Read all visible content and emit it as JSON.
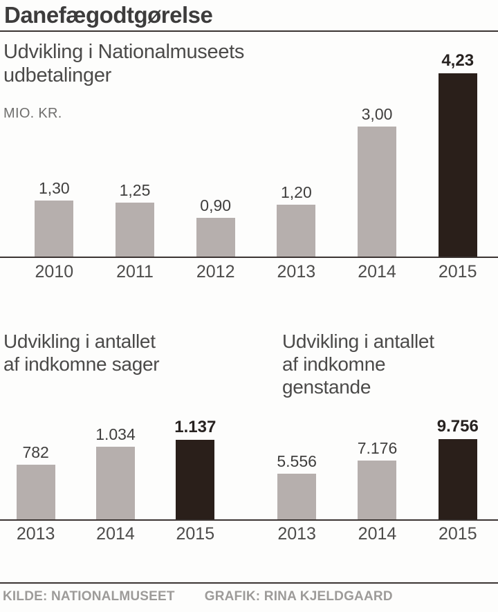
{
  "page": {
    "title": "Danefægodtgørelse",
    "source_label": "KILDE: NATIONALMUSEET",
    "credit_label": "GRAFIK: RINA KJELDGAARD"
  },
  "colors": {
    "bar_default": "#b6afad",
    "bar_highlight": "#2a1f1a",
    "axis_line": "#3a3331"
  },
  "chart_data": [
    {
      "type": "bar",
      "title": "Udvikling i Nationalmuseets\nudbetalinger",
      "ylabel": "MIO. KR.",
      "categories": [
        "2010",
        "2011",
        "2012",
        "2013",
        "2014",
        "2015"
      ],
      "values": [
        1.3,
        1.25,
        0.9,
        1.2,
        3.0,
        4.23
      ],
      "labels": [
        "1,30",
        "1,25",
        "0,90",
        "1,20",
        "3,00",
        "4,23"
      ],
      "highlight_category": "2015",
      "ylim": [
        0,
        4.23
      ],
      "grid": false,
      "legend": false
    },
    {
      "type": "bar",
      "title": "Udvikling i antallet\naf indkomne sager",
      "categories": [
        "2013",
        "2014",
        "2015"
      ],
      "values": [
        782,
        1034,
        1137
      ],
      "labels": [
        "782",
        "1.034",
        "1.137"
      ],
      "highlight_category": "2015",
      "ylim": [
        0,
        1137
      ],
      "grid": false,
      "legend": false
    },
    {
      "type": "bar",
      "title": "Udvikling i antallet\naf indkomne\ngenstande",
      "categories": [
        "2013",
        "2014",
        "2015"
      ],
      "values": [
        5556,
        7176,
        9756
      ],
      "labels": [
        "5.556",
        "7.176",
        "9.756"
      ],
      "highlight_category": "2015",
      "ylim": [
        0,
        9756
      ],
      "grid": false,
      "legend": false
    }
  ]
}
